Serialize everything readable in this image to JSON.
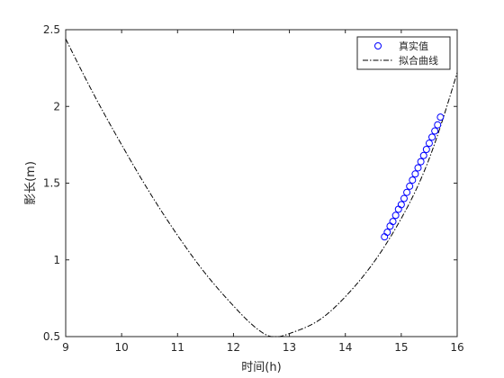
{
  "chart_data": {
    "type": "line",
    "title": "",
    "xlabel": "时间(h)",
    "ylabel": "影长(m)",
    "xlim": [
      9,
      16
    ],
    "ylim": [
      0.5,
      2.5
    ],
    "xticks": [
      "9",
      "10",
      "11",
      "12",
      "13",
      "14",
      "15",
      "16"
    ],
    "yticks": [
      "0.5",
      "1",
      "1.5",
      "2",
      "2.5"
    ],
    "grid": false,
    "legend_position": "top-right",
    "series": [
      {
        "name": "真实值",
        "style": "scatter-circle",
        "color": "#0000ff",
        "x": [
          14.7,
          14.75,
          14.8,
          14.85,
          14.9,
          14.95,
          15.0,
          15.05,
          15.1,
          15.15,
          15.2,
          15.25,
          15.3,
          15.35,
          15.4,
          15.45,
          15.5,
          15.55,
          15.6,
          15.65,
          15.7
        ],
        "y": [
          1.15,
          1.18,
          1.22,
          1.25,
          1.29,
          1.33,
          1.36,
          1.4,
          1.44,
          1.48,
          1.52,
          1.56,
          1.6,
          1.64,
          1.68,
          1.72,
          1.76,
          1.8,
          1.84,
          1.88,
          1.93
        ]
      },
      {
        "name": "拟合曲线",
        "style": "dash-dot",
        "color": "#000000",
        "x": [
          9.0,
          9.5,
          10.0,
          10.5,
          11.0,
          11.5,
          12.0,
          12.5,
          12.67,
          13.0,
          13.5,
          14.0,
          14.5,
          15.0,
          15.5,
          16.0
        ],
        "y": [
          2.44,
          2.08,
          1.75,
          1.44,
          1.16,
          0.91,
          0.7,
          0.53,
          0.5,
          0.52,
          0.6,
          0.76,
          0.98,
          1.27,
          1.66,
          2.22
        ]
      }
    ]
  }
}
